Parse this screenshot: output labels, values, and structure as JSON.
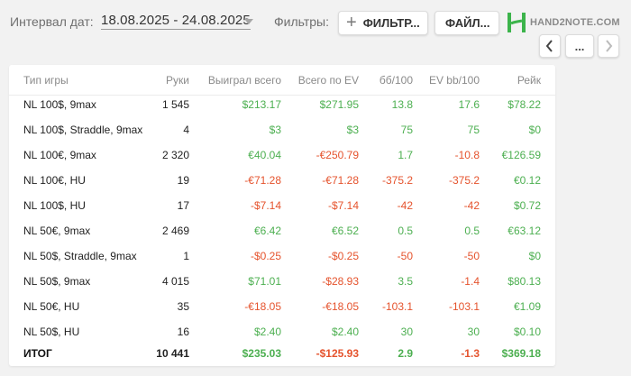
{
  "toolbar": {
    "date_label": "Интервал дат:",
    "date_range": "18.08.2025 - 24.08.2025",
    "filters_label": "Фильтры:",
    "filter_button": "ФИЛЬТР...",
    "file_button": "ФАЙЛ...",
    "logo_text": "HAND2NOTE.COM",
    "more_button": "...",
    "logo_color": "#3cb44b"
  },
  "table": {
    "headers": [
      "Тип игры",
      "Руки",
      "Выиграл всего",
      "Всего по EV",
      "бб/100",
      "EV bb/100",
      "Рейк"
    ],
    "rows": [
      {
        "game": "NL 100$, 9max",
        "hands": "1 545",
        "won": "$213.17",
        "ev": "$271.95",
        "bb100": "13.8",
        "evbb100": "17.6",
        "rake": "$78.22"
      },
      {
        "game": "NL 100$, Straddle, 9max",
        "hands": "4",
        "won": "$3",
        "ev": "$3",
        "bb100": "75",
        "evbb100": "75",
        "rake": "$0"
      },
      {
        "game": "NL 100€, 9max",
        "hands": "2 320",
        "won": "€40.04",
        "ev": "-€250.79",
        "bb100": "1.7",
        "evbb100": "-10.8",
        "rake": "€126.59"
      },
      {
        "game": "NL 100€, HU",
        "hands": "19",
        "won": "-€71.28",
        "ev": "-€71.28",
        "bb100": "-375.2",
        "evbb100": "-375.2",
        "rake": "€0.12"
      },
      {
        "game": "NL 100$, HU",
        "hands": "17",
        "won": "-$7.14",
        "ev": "-$7.14",
        "bb100": "-42",
        "evbb100": "-42",
        "rake": "$0.72"
      },
      {
        "game": "NL 50€, 9max",
        "hands": "2 469",
        "won": "€6.42",
        "ev": "€6.52",
        "bb100": "0.5",
        "evbb100": "0.5",
        "rake": "€63.12"
      },
      {
        "game": "NL 50$, Straddle, 9max",
        "hands": "1",
        "won": "-$0.25",
        "ev": "-$0.25",
        "bb100": "-50",
        "evbb100": "-50",
        "rake": "$0"
      },
      {
        "game": "NL 50$, 9max",
        "hands": "4 015",
        "won": "$71.01",
        "ev": "-$28.93",
        "bb100": "3.5",
        "evbb100": "-1.4",
        "rake": "$80.13"
      },
      {
        "game": "NL 50€, HU",
        "hands": "35",
        "won": "-€18.05",
        "ev": "-€18.05",
        "bb100": "-103.1",
        "evbb100": "-103.1",
        "rake": "€1.09"
      },
      {
        "game": "NL 50$, HU",
        "hands": "16",
        "won": "$2.40",
        "ev": "$2.40",
        "bb100": "30",
        "evbb100": "30",
        "rake": "$0.10"
      }
    ],
    "total": {
      "game": "ИТОГ",
      "hands": "10 441",
      "won": "$235.03",
      "ev": "-$125.93",
      "bb100": "2.9",
      "evbb100": "-1.3",
      "rake": "$369.18"
    },
    "colors": {
      "positive": "#4caf50",
      "negative": "#e5532d"
    }
  }
}
